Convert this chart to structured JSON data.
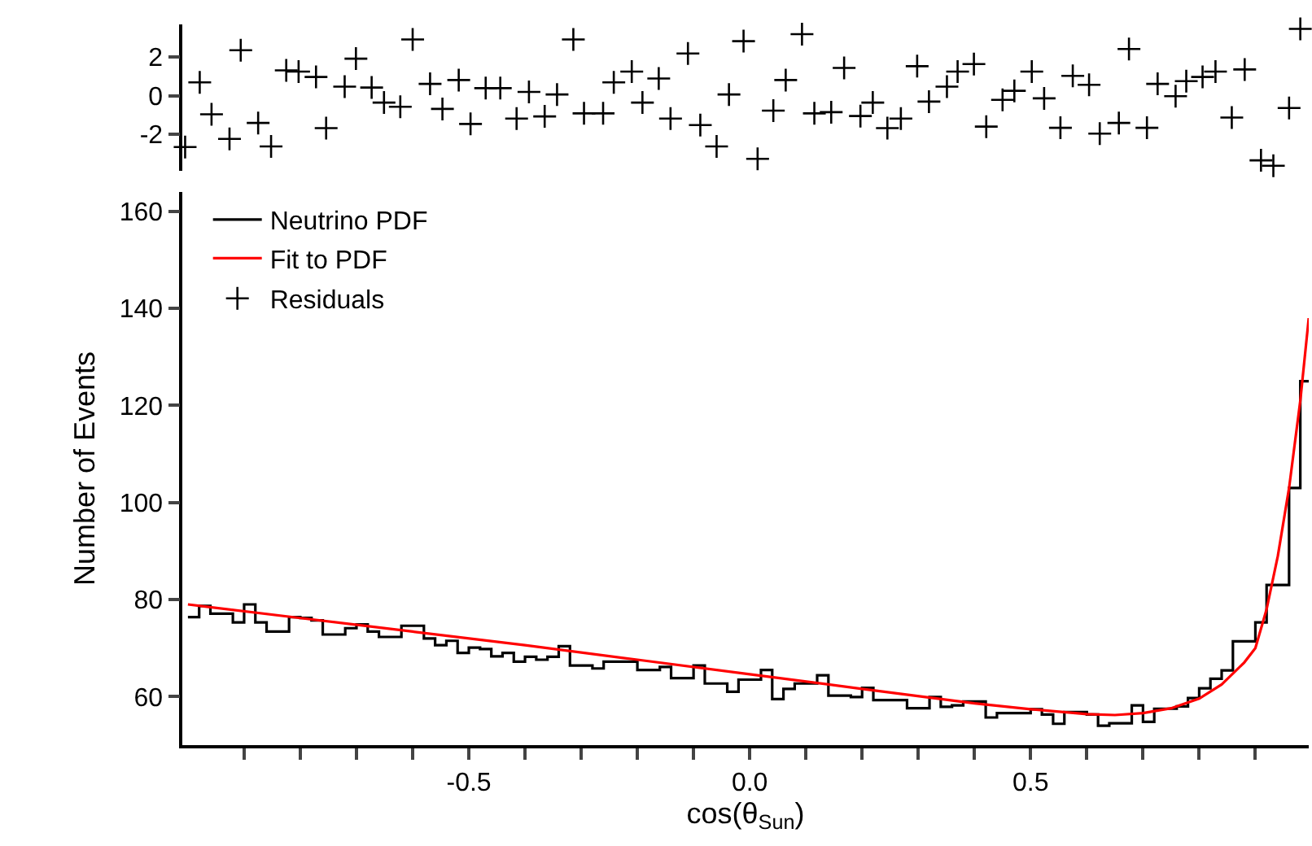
{
  "chart_data": [
    {
      "type": "scatter",
      "legend": "bottom left",
      "tick_labels": "y",
      "marker": "cross",
      "xlim": [
        -1.01,
        0.995
      ],
      "ylim": [
        -3.9,
        3.7
      ],
      "yticks": [
        -2,
        0,
        2
      ],
      "series": [
        {
          "name": "Residuals",
          "color": "#000000",
          "x": [
            -1.005,
            -0.979,
            -0.958,
            -0.926,
            -0.906,
            -0.875,
            -0.852,
            -0.825,
            -0.803,
            -0.772,
            -0.754,
            -0.721,
            -0.701,
            -0.673,
            -0.651,
            -0.622,
            -0.6,
            -0.569,
            -0.547,
            -0.518,
            -0.497,
            -0.47,
            -0.444,
            -0.415,
            -0.393,
            -0.365,
            -0.343,
            -0.314,
            -0.295,
            -0.261,
            -0.242,
            -0.21,
            -0.191,
            -0.162,
            -0.141,
            -0.11,
            -0.088,
            -0.059,
            -0.037,
            -0.011,
            0.014,
            0.042,
            0.064,
            0.093,
            0.115,
            0.145,
            0.168,
            0.197,
            0.219,
            0.245,
            0.269,
            0.298,
            0.319,
            0.351,
            0.37,
            0.399,
            0.421,
            0.45,
            0.471,
            0.502,
            0.524,
            0.553,
            0.575,
            0.604,
            0.623,
            0.657,
            0.675,
            0.707,
            0.726,
            0.758,
            0.777,
            0.806,
            0.829,
            0.858,
            0.881,
            0.91,
            0.932,
            0.96,
            0.98
          ],
          "values": [
            -2.67,
            0.69,
            -0.97,
            -2.25,
            2.36,
            -1.42,
            -2.64,
            1.31,
            1.25,
            0.97,
            -1.69,
            0.47,
            1.92,
            0.42,
            -0.36,
            -0.58,
            2.92,
            0.61,
            -0.69,
            0.81,
            -1.47,
            0.39,
            0.39,
            -1.19,
            0.19,
            -1.08,
            0.06,
            2.92,
            -0.92,
            -0.92,
            0.69,
            1.25,
            -0.36,
            0.89,
            -1.19,
            2.19,
            -1.53,
            -2.64,
            0.06,
            2.83,
            -3.28,
            -0.78,
            0.81,
            3.19,
            -0.92,
            -0.86,
            1.44,
            -1.06,
            -0.36,
            -1.69,
            -1.19,
            1.53,
            -0.31,
            0.47,
            1.25,
            1.64,
            -1.61,
            -0.22,
            0.25,
            1.25,
            -0.14,
            -1.67,
            1.03,
            0.56,
            -1.97,
            -1.42,
            2.42,
            -1.67,
            0.61,
            -0.03,
            0.75,
            0.97,
            1.25,
            -1.14,
            1.36,
            -3.36,
            -3.64,
            -0.64,
            3.47
          ]
        }
      ]
    },
    {
      "type": "histogram",
      "xlabel": "cos(θ$_{Sun}$)",
      "ylabel": "Number of Events",
      "legend": "top left",
      "xlim": [
        -1.01,
        0.995
      ],
      "xticks": [
        {
          "value": -0.9,
          "label": null
        },
        {
          "value": -0.8,
          "label": null
        },
        {
          "value": -0.7,
          "label": null
        },
        {
          "value": -0.6,
          "label": null
        },
        -0.5,
        {
          "value": -0.4,
          "label": null
        },
        {
          "value": -0.3,
          "label": null
        },
        {
          "value": -0.2,
          "label": null
        },
        {
          "value": -0.1,
          "label": null
        },
        {
          "value": 0,
          "label": "0.0"
        },
        {
          "value": 0.1,
          "label": null
        },
        {
          "value": 0.2,
          "label": null
        },
        {
          "value": 0.3,
          "label": null
        },
        {
          "value": 0.4,
          "label": null
        },
        0.5,
        {
          "value": 0.6,
          "label": null
        },
        {
          "value": 0.7,
          "label": null
        },
        {
          "value": 0.8,
          "label": null
        },
        {
          "value": 0.9,
          "label": null
        }
      ],
      "ylim": [
        50,
        164
      ],
      "yticks": [
        60,
        80,
        100,
        120,
        140,
        160
      ],
      "series": [
        {
          "name": "Neutrino PDF",
          "color": "#000000",
          "bins": [
            -1.0,
            -0.98,
            -0.96,
            -0.94,
            -0.92,
            -0.9,
            -0.88,
            -0.86,
            -0.84,
            -0.82,
            -0.8,
            -0.78,
            -0.76,
            -0.74,
            -0.72,
            -0.7,
            -0.68,
            -0.66,
            -0.64,
            -0.62,
            -0.6,
            -0.58,
            -0.56,
            -0.54,
            -0.52,
            -0.5,
            -0.48,
            -0.46,
            -0.44,
            -0.42,
            -0.4,
            -0.38,
            -0.36,
            -0.34,
            -0.32,
            -0.3,
            -0.28,
            -0.26,
            -0.24,
            -0.22,
            -0.2,
            -0.18,
            -0.16,
            -0.14,
            -0.12,
            -0.1,
            -0.08,
            -0.06,
            -0.04,
            -0.02,
            0.0,
            0.02,
            0.04,
            0.06,
            0.08,
            0.1,
            0.12,
            0.14,
            0.16,
            0.18,
            0.2,
            0.22,
            0.24,
            0.26,
            0.28,
            0.3,
            0.32,
            0.34,
            0.36,
            0.38,
            0.4,
            0.42,
            0.44,
            0.46,
            0.48,
            0.5,
            0.52,
            0.54,
            0.56,
            0.58,
            0.6,
            0.62,
            0.64,
            0.66,
            0.68,
            0.7,
            0.72,
            0.74,
            0.76,
            0.78,
            0.8,
            0.82,
            0.84,
            0.86,
            0.88,
            0.9,
            0.92,
            0.94,
            0.96,
            0.98,
            1.0
          ],
          "values": [
            76.4,
            78.7,
            77.1,
            77.1,
            75.3,
            79.0,
            75.3,
            73.4,
            73.4,
            76.4,
            76.2,
            75.7,
            72.8,
            72.8,
            74.1,
            74.9,
            73.4,
            72.3,
            72.3,
            74.6,
            74.6,
            72.0,
            70.6,
            71.5,
            69.0,
            70.1,
            69.8,
            68.3,
            69.0,
            67.2,
            68.2,
            67.6,
            68.2,
            70.4,
            66.4,
            66.4,
            65.8,
            67.2,
            67.2,
            67.2,
            65.5,
            65.5,
            66.1,
            63.8,
            63.8,
            66.4,
            62.7,
            62.7,
            61.0,
            63.5,
            63.5,
            65.5,
            59.5,
            61.6,
            62.7,
            62.7,
            64.4,
            60.2,
            60.2,
            59.9,
            61.8,
            59.3,
            59.3,
            59.3,
            57.6,
            57.6,
            59.9,
            57.9,
            58.2,
            59.0,
            59.0,
            55.7,
            56.6,
            56.6,
            56.6,
            57.4,
            56.3,
            54.4,
            56.8,
            56.8,
            56.3,
            54.0,
            54.5,
            54.5,
            58.2,
            54.8,
            57.5,
            57.5,
            58.0,
            59.7,
            61.7,
            63.7,
            65.4,
            71.4,
            71.4,
            75.3,
            83.0,
            83.0,
            103.0,
            125.0
          ]
        },
        {
          "name": "Fit to PDF",
          "type": "line",
          "color": "#ff0000",
          "x": [
            -1.0,
            -0.8,
            -0.6,
            -0.4,
            -0.2,
            0.0,
            0.2,
            0.4,
            0.5,
            0.6,
            0.65,
            0.7,
            0.75,
            0.8,
            0.84,
            0.88,
            0.9,
            0.92,
            0.94,
            0.96,
            0.98,
            0.995
          ],
          "values": [
            79,
            76.2,
            73.4,
            70.6,
            67.6,
            64.6,
            61.6,
            58.6,
            57.4,
            56.4,
            56.2,
            56.6,
            57.6,
            59.6,
            62.5,
            67,
            70,
            78,
            89,
            103,
            121,
            138
          ]
        }
      ]
    }
  ]
}
